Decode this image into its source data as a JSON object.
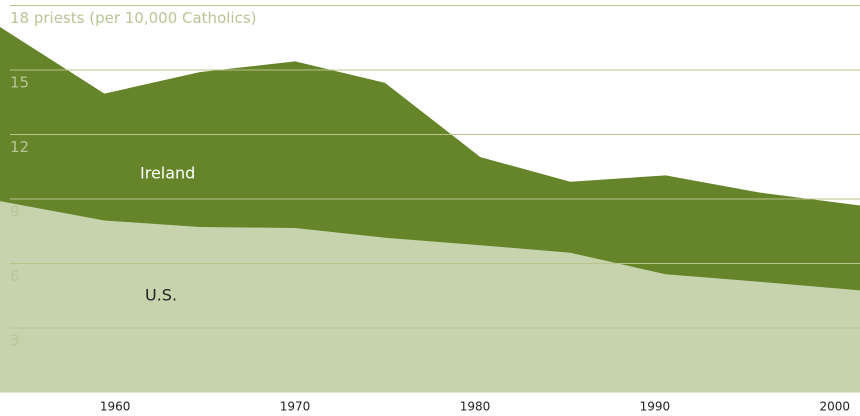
{
  "chart_data": {
    "type": "area",
    "x": [
      1953.6,
      1959.4,
      1964.7,
      1970,
      1975,
      1980.3,
      1985.3,
      1990.6,
      1995.8,
      2001.4
    ],
    "series": [
      {
        "name": "Ireland",
        "color": "#66842a",
        "values": [
          17,
          13.9,
          14.9,
          15.4,
          14.4,
          10.95,
          9.8,
          10.1,
          9.3,
          8.7
        ]
      },
      {
        "name": "U.S.",
        "color": "#c6d3ad",
        "values": [
          8.9,
          8.0,
          7.7,
          7.65,
          7.2,
          6.85,
          6.5,
          5.5,
          5.15,
          4.75
        ]
      }
    ],
    "xlim": [
      1953.6,
      2001.4
    ],
    "xticks": [
      1960,
      1970,
      1980,
      1990,
      2000
    ],
    "ylim": [
      0,
      18
    ],
    "yticks": [
      3,
      6,
      9,
      12,
      15,
      {
        "value": 18,
        "label": "18 priests (per 10,000 Catholics)"
      }
    ],
    "grid": true
  }
}
